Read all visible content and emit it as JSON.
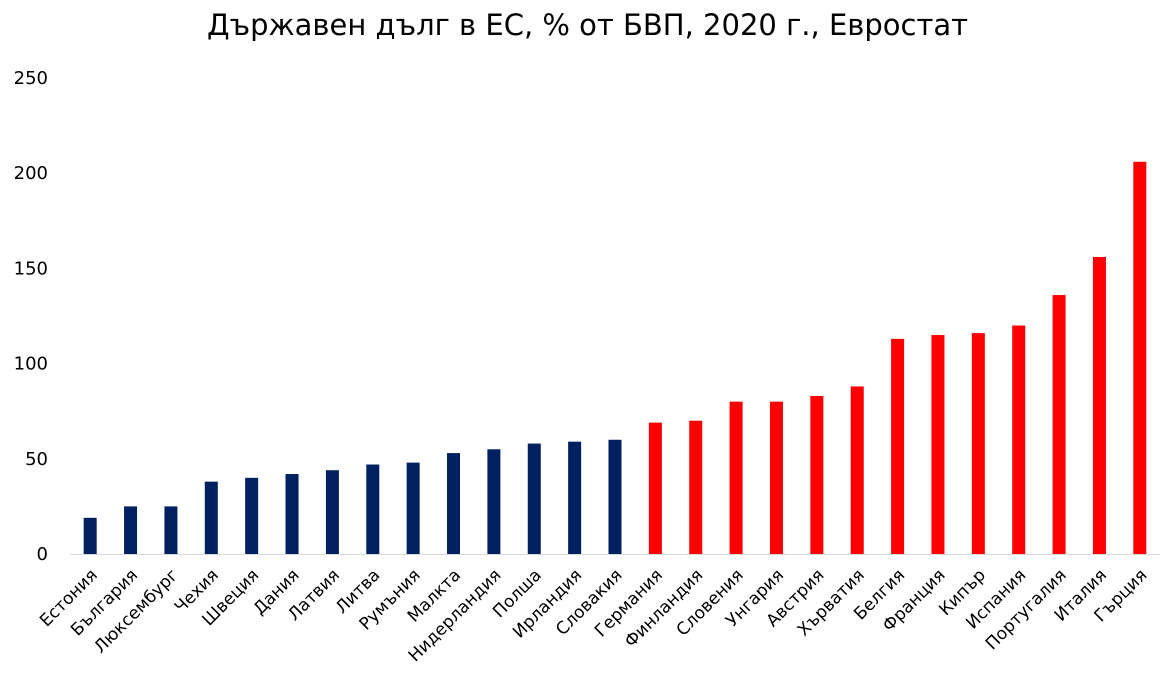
{
  "chart_data": {
    "type": "bar",
    "title": "Държавен дълг в ЕС, % от БВП, 2020 г., Евростат",
    "xlabel": "",
    "ylabel": "",
    "ylim": [
      0,
      250
    ],
    "yticks": [
      "0",
      "50",
      "100",
      "150",
      "200",
      "250"
    ],
    "grid": false,
    "legend": "none",
    "colors": {
      "below_60": "#002060",
      "above_60": "#ff0000"
    },
    "categories": [
      "Естония",
      "България",
      "Люксембург",
      "Чехия",
      "Швеция",
      "Дания",
      "Латвия",
      "Литва",
      "Румъния",
      "Малкта",
      "Нидерландия",
      "Полша",
      "Ирландия",
      "Словакия",
      "Германия",
      "Финландия",
      "Словения",
      "Унгария",
      "Австрия",
      "Хърватия",
      "Белгия",
      "Франция",
      "Кипър",
      "Испания",
      "Португалия",
      "Италия",
      "Гърция"
    ],
    "values": [
      19,
      25,
      25,
      38,
      40,
      42,
      44,
      47,
      48,
      53,
      55,
      58,
      59,
      60,
      69,
      70,
      80,
      80,
      83,
      88,
      113,
      115,
      116,
      120,
      136,
      156,
      206
    ],
    "bar_colors": [
      "#002060",
      "#002060",
      "#002060",
      "#002060",
      "#002060",
      "#002060",
      "#002060",
      "#002060",
      "#002060",
      "#002060",
      "#002060",
      "#002060",
      "#002060",
      "#002060",
      "#ff0000",
      "#ff0000",
      "#ff0000",
      "#ff0000",
      "#ff0000",
      "#ff0000",
      "#ff0000",
      "#ff0000",
      "#ff0000",
      "#ff0000",
      "#ff0000",
      "#ff0000",
      "#ff0000"
    ]
  }
}
